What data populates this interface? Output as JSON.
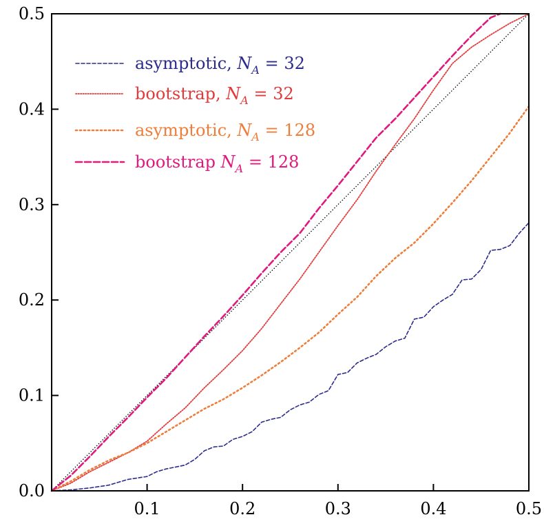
{
  "chart_data": {
    "type": "line",
    "xlim": [
      0,
      0.5
    ],
    "ylim": [
      0,
      0.5
    ],
    "x_ticks": [
      0.1,
      0.2,
      0.3,
      0.4,
      0.5
    ],
    "x_tick_labels": [
      "0.1",
      "0.2",
      "0.3",
      "0.4",
      "0.5"
    ],
    "y_ticks": [
      0.0,
      0.1,
      0.2,
      0.3,
      0.4,
      0.5
    ],
    "y_tick_labels": [
      "0.0",
      "0.1",
      "0.2",
      "0.3",
      "0.4",
      "0.5"
    ],
    "grid": false,
    "legend_placement": "top-left",
    "reference_line": {
      "x": [
        0,
        0.5
      ],
      "y": [
        0,
        0.5
      ],
      "color": "#000000",
      "style": "dotted"
    },
    "series": [
      {
        "name": "asymptotic, N_A = 32",
        "legend_prefix": "asymptotic, ",
        "legend_var": "N",
        "legend_sub": "A",
        "legend_suffix": " = 32",
        "color": "#2b2b8c",
        "style": "dashed",
        "x": [
          0,
          0.02,
          0.04,
          0.06,
          0.07,
          0.08,
          0.1,
          0.11,
          0.12,
          0.14,
          0.15,
          0.16,
          0.17,
          0.18,
          0.19,
          0.2,
          0.21,
          0.22,
          0.23,
          0.24,
          0.25,
          0.26,
          0.27,
          0.28,
          0.29,
          0.3,
          0.31,
          0.32,
          0.33,
          0.34,
          0.35,
          0.36,
          0.37,
          0.38,
          0.39,
          0.4,
          0.41,
          0.42,
          0.43,
          0.44,
          0.45,
          0.46,
          0.47,
          0.48,
          0.49,
          0.5
        ],
        "y": [
          0,
          0.001,
          0.003,
          0.006,
          0.009,
          0.012,
          0.015,
          0.02,
          0.023,
          0.027,
          0.033,
          0.042,
          0.046,
          0.047,
          0.054,
          0.057,
          0.062,
          0.072,
          0.075,
          0.077,
          0.085,
          0.09,
          0.093,
          0.101,
          0.105,
          0.122,
          0.124,
          0.134,
          0.139,
          0.143,
          0.151,
          0.157,
          0.16,
          0.18,
          0.182,
          0.193,
          0.2,
          0.206,
          0.221,
          0.222,
          0.232,
          0.252,
          0.253,
          0.257,
          0.27,
          0.281
        ]
      },
      {
        "name": "bootstrap, N_A = 32",
        "legend_prefix": "bootstrap, ",
        "legend_var": "N",
        "legend_sub": "A",
        "legend_suffix": " = 32",
        "color": "#e23a3a",
        "style": "dotted",
        "x": [
          0,
          0.02,
          0.04,
          0.06,
          0.08,
          0.1,
          0.12,
          0.14,
          0.16,
          0.18,
          0.2,
          0.22,
          0.24,
          0.26,
          0.28,
          0.3,
          0.32,
          0.34,
          0.36,
          0.38,
          0.4,
          0.42,
          0.44,
          0.46,
          0.48,
          0.5
        ],
        "y": [
          0,
          0.008,
          0.02,
          0.03,
          0.04,
          0.052,
          0.07,
          0.087,
          0.108,
          0.127,
          0.147,
          0.17,
          0.196,
          0.222,
          0.25,
          0.278,
          0.305,
          0.335,
          0.363,
          0.39,
          0.42,
          0.448,
          0.465,
          0.478,
          0.49,
          0.5
        ]
      },
      {
        "name": "asymptotic, N_A = 128",
        "legend_prefix": "asymptotic, ",
        "legend_var": "N",
        "legend_sub": "A",
        "legend_suffix": " = 128",
        "color": "#ef7d3a",
        "style": "dotted",
        "x": [
          0,
          0.02,
          0.04,
          0.06,
          0.08,
          0.1,
          0.12,
          0.14,
          0.16,
          0.18,
          0.2,
          0.22,
          0.24,
          0.26,
          0.28,
          0.3,
          0.32,
          0.34,
          0.36,
          0.38,
          0.4,
          0.42,
          0.44,
          0.46,
          0.48,
          0.5
        ],
        "y": [
          0,
          0.01,
          0.022,
          0.032,
          0.04,
          0.05,
          0.062,
          0.074,
          0.086,
          0.096,
          0.108,
          0.121,
          0.135,
          0.15,
          0.166,
          0.185,
          0.203,
          0.225,
          0.244,
          0.26,
          0.28,
          0.302,
          0.325,
          0.35,
          0.375,
          0.403
        ]
      },
      {
        "name": "bootstrap N_A = 128",
        "legend_prefix": "bootstrap ",
        "legend_var": "N",
        "legend_sub": "A",
        "legend_suffix": " = 128",
        "color": "#e0197d",
        "style": "dashed",
        "x": [
          0,
          0.02,
          0.04,
          0.06,
          0.08,
          0.1,
          0.12,
          0.14,
          0.16,
          0.18,
          0.2,
          0.22,
          0.24,
          0.26,
          0.28,
          0.3,
          0.32,
          0.34,
          0.36,
          0.38,
          0.4,
          0.42,
          0.44,
          0.46,
          0.47
        ],
        "y": [
          0,
          0.016,
          0.036,
          0.057,
          0.077,
          0.098,
          0.118,
          0.14,
          0.162,
          0.183,
          0.205,
          0.228,
          0.25,
          0.27,
          0.296,
          0.32,
          0.345,
          0.37,
          0.39,
          0.412,
          0.434,
          0.456,
          0.477,
          0.496,
          0.5
        ]
      }
    ]
  }
}
